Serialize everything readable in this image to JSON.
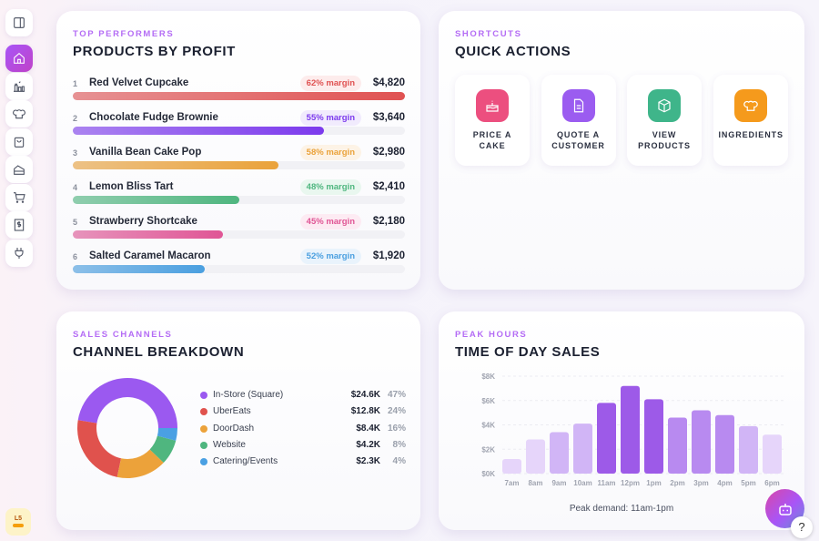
{
  "sidebar": {
    "items": [
      {
        "icon": "sidebar-toggle-icon"
      },
      {
        "icon": "home-icon",
        "active": true
      },
      {
        "icon": "factory-icon"
      },
      {
        "icon": "chef-hat-icon"
      },
      {
        "icon": "shopping-bag-icon"
      },
      {
        "icon": "cake-slice-icon"
      },
      {
        "icon": "cart-icon"
      },
      {
        "icon": "receipt-dollar-icon"
      },
      {
        "icon": "plug-icon"
      }
    ],
    "level_badge": "L5"
  },
  "products": {
    "eyebrow": "TOP PERFORMERS",
    "title": "PRODUCTS BY PROFIT",
    "items": [
      {
        "rank": "1",
        "name": "Red Velvet Cupcake",
        "margin": "62% margin",
        "amount": "$4,820",
        "value": 4820,
        "color": "#e05252",
        "bg": "#fdecec"
      },
      {
        "rank": "2",
        "name": "Chocolate Fudge Brownie",
        "margin": "55% margin",
        "amount": "$3,640",
        "value": 3640,
        "color": "#7c3aed",
        "bg": "#f1ebfd"
      },
      {
        "rank": "3",
        "name": "Vanilla Bean Cake Pop",
        "margin": "58% margin",
        "amount": "$2,980",
        "value": 2980,
        "color": "#eaa23a",
        "bg": "#fdf3e6"
      },
      {
        "rank": "4",
        "name": "Lemon Bliss Tart",
        "margin": "48% margin",
        "amount": "$2,410",
        "value": 2410,
        "color": "#4fb67f",
        "bg": "#e9f7ef"
      },
      {
        "rank": "5",
        "name": "Strawberry Shortcake",
        "margin": "45% margin",
        "amount": "$2,180",
        "value": 2180,
        "color": "#e05595",
        "bg": "#fdebf3"
      },
      {
        "rank": "6",
        "name": "Salted Caramel Macaron",
        "margin": "52% margin",
        "amount": "$1,920",
        "value": 1920,
        "color": "#4a9fe0",
        "bg": "#e9f3fc"
      }
    ]
  },
  "shortcuts": {
    "eyebrow": "SHORTCUTS",
    "title": "QUICK ACTIONS",
    "items": [
      {
        "label": "PRICE A CAKE",
        "icon": "cake-icon",
        "color": "#ec4f7f"
      },
      {
        "label": "QUOTE A CUSTOMER",
        "icon": "document-icon",
        "color": "#9b5cf0"
      },
      {
        "label": "VIEW PRODUCTS",
        "icon": "box-icon",
        "color": "#3fb58a"
      },
      {
        "label": "INGREDIENTS",
        "icon": "chef-hat-icon",
        "color": "#f59a1c"
      }
    ]
  },
  "channels": {
    "eyebrow": "SALES CHANNELS",
    "title": "CHANNEL BREAKDOWN"
  },
  "hours": {
    "eyebrow": "PEAK HOURS",
    "title": "TIME OF DAY SALES",
    "footer": "Peak demand: 11am-1pm"
  },
  "chart_data": [
    {
      "type": "pie",
      "donut": true,
      "categories": [
        "In-Store (Square)",
        "UberEats",
        "DoorDash",
        "Website",
        "Catering/Events"
      ],
      "values_label": [
        "$24.6K",
        "$12.8K",
        "$8.4K",
        "$4.2K",
        "$2.3K"
      ],
      "values": [
        24.6,
        12.8,
        8.4,
        4.2,
        2.3
      ],
      "percent_label": [
        "47%",
        "24%",
        "16%",
        "8%",
        "4%"
      ],
      "percent": [
        47,
        24,
        16,
        8,
        4
      ],
      "colors": [
        "#9b59f0",
        "#e0524d",
        "#eca23a",
        "#4fb67f",
        "#4aa0e3"
      ],
      "legend": "right"
    },
    {
      "type": "bar",
      "categories": [
        "7am",
        "8am",
        "9am",
        "10am",
        "11am",
        "12pm",
        "1pm",
        "2pm",
        "3pm",
        "4pm",
        "5pm",
        "6pm"
      ],
      "values": [
        1.2,
        2.8,
        3.4,
        4.1,
        5.8,
        7.2,
        6.1,
        4.6,
        5.2,
        4.8,
        3.9,
        3.2
      ],
      "unit": "$K",
      "ylim": [
        0,
        8
      ],
      "yticks": [
        "$0K",
        "$2K",
        "$4K",
        "$6K",
        "$8K"
      ],
      "grid": true
    }
  ],
  "fab": {
    "icon": "robot-icon",
    "help": "?"
  }
}
